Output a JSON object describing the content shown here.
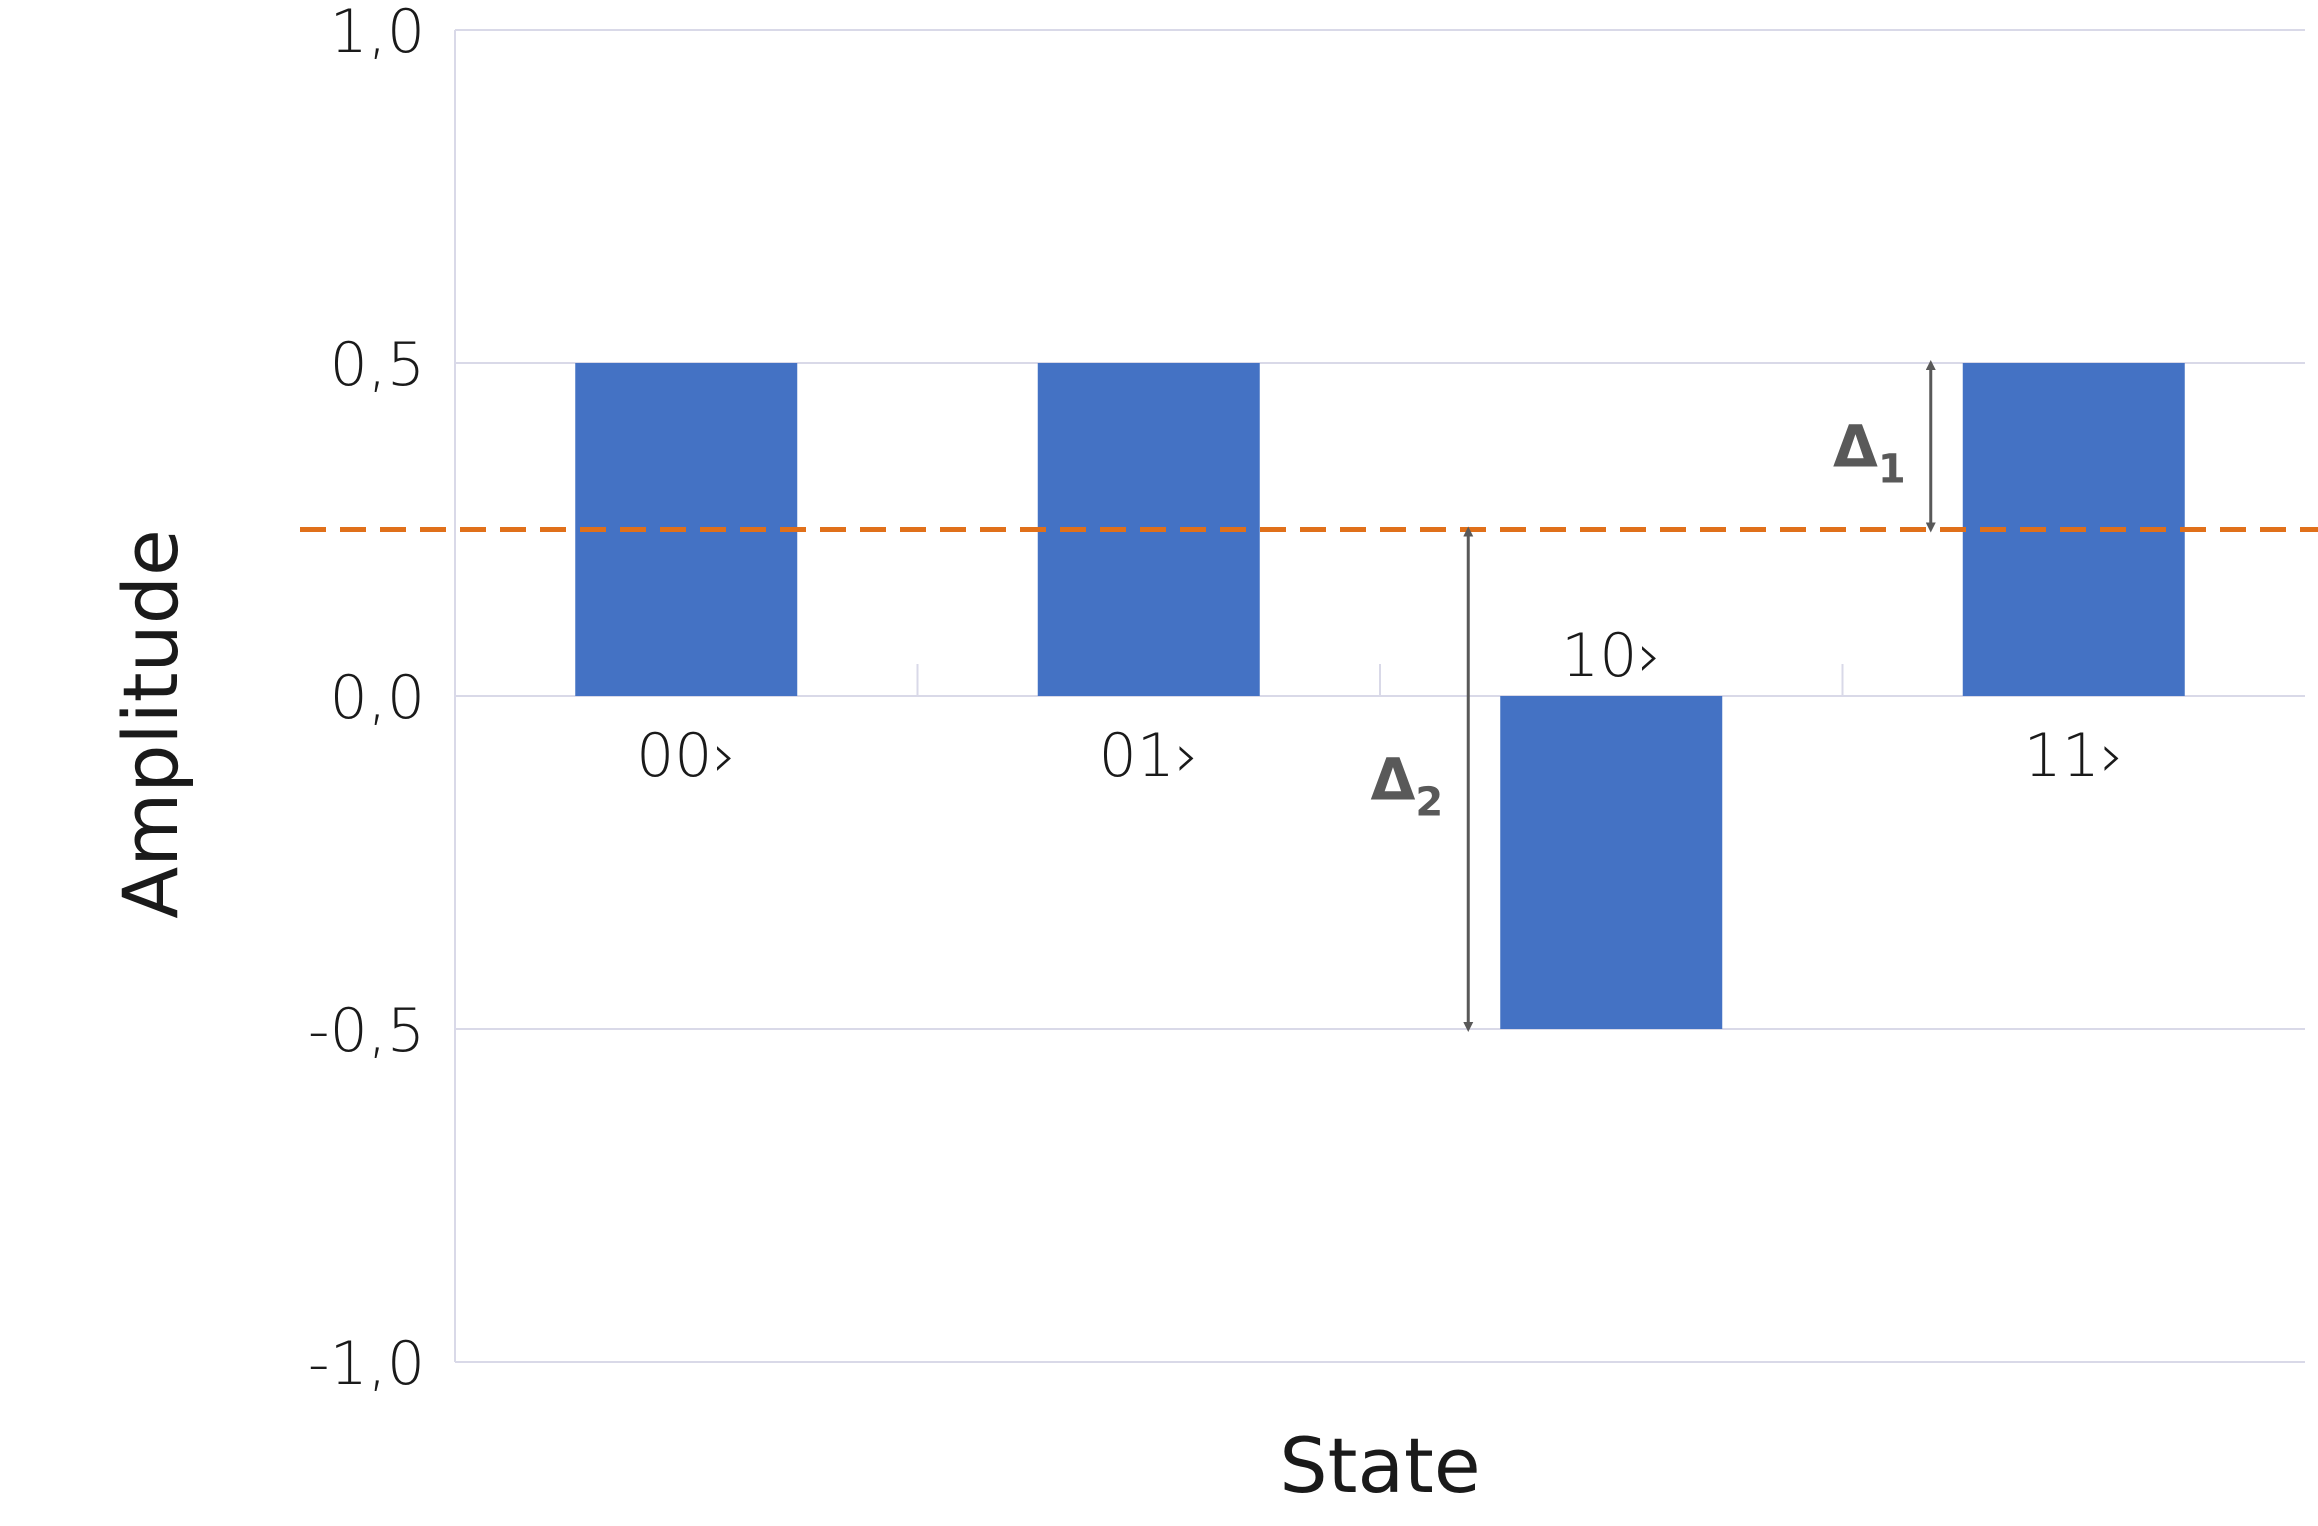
{
  "chart_data": {
    "type": "bar",
    "categories": [
      "00›",
      "01›",
      "10›",
      "11›"
    ],
    "values": [
      0.5,
      0.5,
      -0.5,
      0.5
    ],
    "series": [
      {
        "values": [
          0.5,
          0.5,
          -0.5,
          0.5
        ],
        "color": "#4472c4"
      }
    ],
    "xlabel": "State",
    "ylabel": "Amplitude",
    "ylim": [
      -1.0,
      1.0
    ],
    "yticks": [
      1.0,
      0.5,
      0.0,
      -0.5,
      -1.0
    ],
    "ytick_labels": [
      "1,0",
      "0,5",
      "0,0",
      "-0,5",
      "-1,0"
    ],
    "grid": true,
    "reference_line": {
      "value": 0.25,
      "style": "dashed",
      "color": "#e0701a"
    },
    "annotations": [
      {
        "label": "Δ",
        "subscript": "1",
        "from": 0.5,
        "to": 0.25,
        "category": "11›",
        "side": "left"
      },
      {
        "label": "Δ",
        "subscript": "2",
        "from": 0.25,
        "to": -0.5,
        "category": "10›",
        "side": "left"
      }
    ],
    "colors": {
      "bar": "#4472c4",
      "grid": "#d9d9e8",
      "arrow": "#595959"
    }
  }
}
